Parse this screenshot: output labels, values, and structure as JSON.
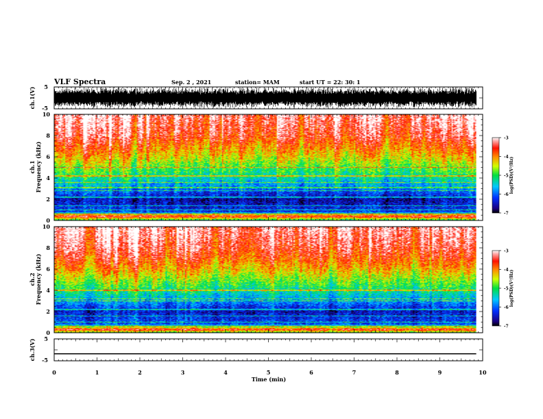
{
  "header": {
    "title": "VLF Spectra",
    "date": "Sep. 2 , 2021",
    "station": "station= MAM",
    "start": "start UT = 22: 30: 1"
  },
  "chart_data": [
    {
      "type": "line",
      "panel": "ch1-waveform",
      "ylabel": "ch.1(V)",
      "ylim": [
        -5,
        5
      ],
      "yticks": [
        "5",
        "-5"
      ],
      "x": [
        0,
        9.85
      ],
      "series": [
        {
          "values_range": [
            -4.5,
            4.8
          ]
        }
      ],
      "grid": false
    },
    {
      "type": "heatmap",
      "panel": "ch1-spectrogram",
      "ylabel_line1": "ch.1",
      "ylabel_line2": "Frequency (kHz)",
      "ylim": [
        0,
        10
      ],
      "yticks": [
        "0",
        "2",
        "4",
        "6",
        "8",
        "10"
      ],
      "xlim": [
        0,
        10
      ],
      "data_x_end": 9.85,
      "colorbar": {
        "label": "log(PSD)(V²/Hz)",
        "range": [
          -7,
          -3
        ],
        "ticks": [
          "-3",
          "-4",
          "-5",
          "-6",
          "-7"
        ]
      },
      "profile": [
        {
          "f": 0.0,
          "v": -5.2
        },
        {
          "f": 0.4,
          "v": -3.4
        },
        {
          "f": 0.8,
          "v": -6.2
        },
        {
          "f": 2.0,
          "v": -6.6
        },
        {
          "f": 3.0,
          "v": -5.9
        },
        {
          "f": 4.0,
          "v": -5.3
        },
        {
          "f": 5.0,
          "v": -4.8
        },
        {
          "f": 6.0,
          "v": -4.3
        },
        {
          "f": 7.0,
          "v": -3.9
        },
        {
          "f": 8.0,
          "v": -3.5
        },
        {
          "f": 10.0,
          "v": -3.2
        }
      ],
      "tonal_lines_khz": [
        0.6,
        1.0,
        1.4,
        2.2,
        2.8,
        3.1,
        3.6,
        4.2,
        5.0
      ]
    },
    {
      "type": "heatmap",
      "panel": "ch2-spectrogram",
      "ylabel_line1": "ch.2",
      "ylabel_line2": "Frequency (kHz)",
      "ylim": [
        0,
        10
      ],
      "yticks": [
        "0",
        "2",
        "4",
        "6",
        "8",
        "10"
      ],
      "xlim": [
        0,
        10
      ],
      "data_x_end": 9.85,
      "colorbar": {
        "label": "log(PSD)(V²/Hz)",
        "range": [
          -7,
          -3
        ],
        "ticks": [
          "-3",
          "-4",
          "-5",
          "-6",
          "-7"
        ]
      },
      "profile": [
        {
          "f": 0.0,
          "v": -5.0
        },
        {
          "f": 0.3,
          "v": -3.5
        },
        {
          "f": 0.8,
          "v": -6.1
        },
        {
          "f": 2.0,
          "v": -6.5
        },
        {
          "f": 3.0,
          "v": -5.8
        },
        {
          "f": 4.0,
          "v": -5.2
        },
        {
          "f": 5.0,
          "v": -4.7
        },
        {
          "f": 6.0,
          "v": -4.2
        },
        {
          "f": 7.0,
          "v": -3.8
        },
        {
          "f": 8.0,
          "v": -3.5
        },
        {
          "f": 10.0,
          "v": -3.2
        }
      ],
      "tonal_lines_khz": [
        0.6,
        1.0,
        1.6,
        2.2,
        3.0,
        3.2,
        4.0
      ]
    },
    {
      "type": "line",
      "panel": "ch3-waveform",
      "ylabel": "ch.3(V)",
      "ylim": [
        -5,
        5
      ],
      "yticks": [
        "5",
        "-5"
      ],
      "x": [
        0,
        9.85
      ],
      "series": [
        {
          "values": [
            -1.8,
            -1.8
          ]
        }
      ],
      "xlabel": "Time (min)",
      "xlim": [
        0,
        10
      ],
      "xticks": [
        "0",
        "1",
        "2",
        "3",
        "4",
        "5",
        "6",
        "7",
        "8",
        "9",
        "10"
      ]
    }
  ]
}
